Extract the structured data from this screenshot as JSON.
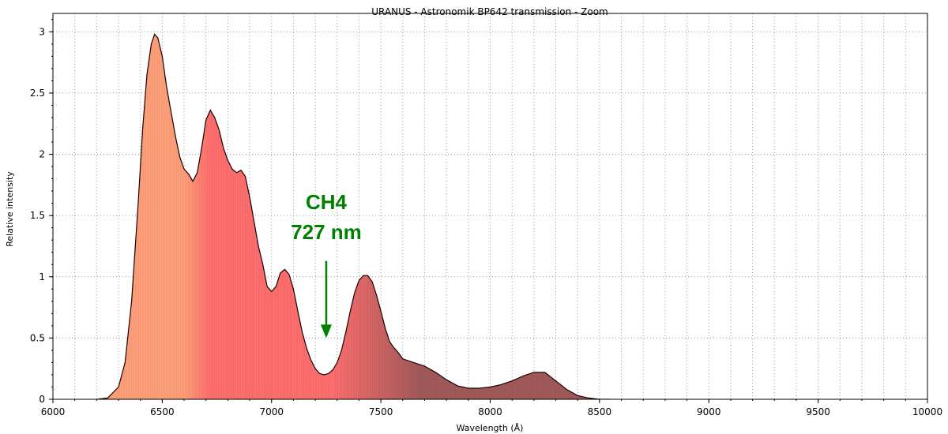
{
  "chart_data": {
    "type": "area",
    "title": "URANUS - Astronomik BP642  transmission - Zoom",
    "xlabel": "Wavelength (Å)",
    "ylabel": "Relative intensity",
    "xlim": [
      6000,
      10000
    ],
    "ylim": [
      0,
      3.15
    ],
    "xticks": [
      6000,
      6500,
      7000,
      7500,
      8000,
      8500,
      9000,
      9500,
      10000
    ],
    "xtick_labels": [
      "6000",
      "6500",
      "7000",
      "7500",
      "8000",
      "8500",
      "9000",
      "9500",
      "10000"
    ],
    "yticks": [
      0,
      0.5,
      1,
      1.5,
      2,
      2.5,
      3
    ],
    "ytick_labels": [
      "0",
      "0.5",
      "1",
      "1.5",
      "2",
      "2.5",
      "3"
    ],
    "grid": true,
    "series": [
      {
        "x": [
          6200,
          6250,
          6300,
          6330,
          6360,
          6390,
          6410,
          6430,
          6450,
          6465,
          6480,
          6500,
          6520,
          6540,
          6560,
          6580,
          6600,
          6620,
          6640,
          6660,
          6680,
          6700,
          6720,
          6740,
          6760,
          6780,
          6800,
          6820,
          6840,
          6860,
          6880,
          6900,
          6920,
          6940,
          6960,
          6980,
          7000,
          7020,
          7040,
          7060,
          7080,
          7100,
          7120,
          7140,
          7160,
          7180,
          7200,
          7220,
          7240,
          7260,
          7280,
          7300,
          7320,
          7340,
          7360,
          7380,
          7400,
          7420,
          7440,
          7460,
          7480,
          7500,
          7520,
          7540,
          7560,
          7580,
          7600,
          7650,
          7700,
          7750,
          7800,
          7850,
          7900,
          7950,
          8000,
          8050,
          8100,
          8150,
          8200,
          8250,
          8300,
          8350,
          8400,
          8450,
          8500,
          8550
        ],
        "y": [
          0.0,
          0.01,
          0.1,
          0.3,
          0.8,
          1.6,
          2.2,
          2.65,
          2.9,
          2.98,
          2.95,
          2.8,
          2.55,
          2.35,
          2.15,
          1.98,
          1.88,
          1.84,
          1.78,
          1.85,
          2.05,
          2.28,
          2.36,
          2.3,
          2.2,
          2.05,
          1.95,
          1.88,
          1.85,
          1.87,
          1.82,
          1.65,
          1.45,
          1.25,
          1.1,
          0.92,
          0.88,
          0.92,
          1.03,
          1.06,
          1.02,
          0.9,
          0.72,
          0.55,
          0.42,
          0.32,
          0.25,
          0.21,
          0.2,
          0.21,
          0.24,
          0.3,
          0.4,
          0.55,
          0.72,
          0.87,
          0.97,
          1.01,
          1.01,
          0.96,
          0.85,
          0.72,
          0.58,
          0.47,
          0.42,
          0.38,
          0.33,
          0.3,
          0.27,
          0.22,
          0.16,
          0.11,
          0.09,
          0.09,
          0.1,
          0.12,
          0.15,
          0.19,
          0.22,
          0.22,
          0.15,
          0.08,
          0.03,
          0.01,
          0.0,
          0.0
        ]
      }
    ],
    "annotations": [
      {
        "text": "CH4",
        "color": "#008000"
      },
      {
        "text": "727 nm",
        "color": "#008000"
      }
    ],
    "arrow_wavelength": 7250,
    "arrow_from_y": 1.13,
    "arrow_to_y": 0.5,
    "arrow_color": "#008000",
    "fill_colors": {
      "short_wavelength": "#ffa07a",
      "red": "#ff6f6f",
      "deep_red": "#a35a5a"
    },
    "outline_color": "#1a0000"
  }
}
